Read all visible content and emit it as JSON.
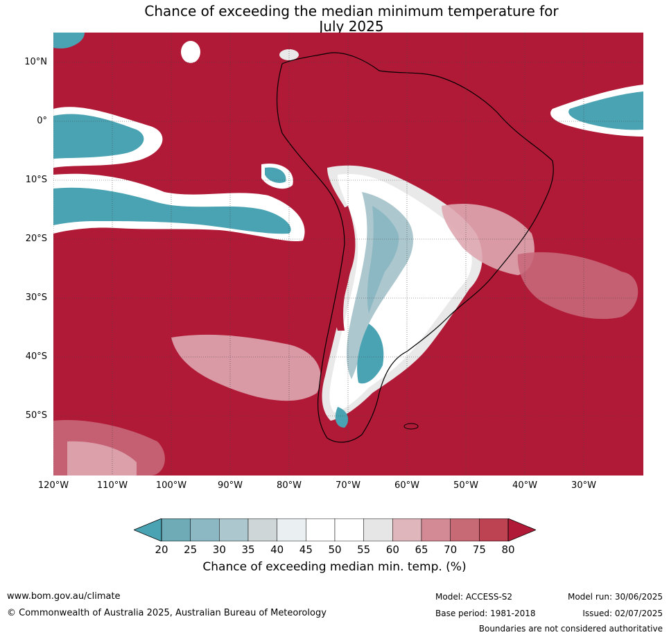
{
  "title": {
    "line1": "Chance of exceeding the median minimum temperature for",
    "line2": "July 2025"
  },
  "map": {
    "lat_labels": [
      "10°N",
      "0°",
      "10°S",
      "20°S",
      "30°S",
      "40°S",
      "50°S"
    ],
    "lon_labels": [
      "120°W",
      "110°W",
      "100°W",
      "90°W",
      "80°W",
      "70°W",
      "60°W",
      "50°W",
      "40°W",
      "30°W"
    ],
    "colors": {
      "ocean_high": "#b01a36",
      "low_teal": "#4aa3b2",
      "mid_white": "#ffffff",
      "light_grey": "#e9e9e9",
      "pink": "#dea7b1",
      "salmon": "#c8687a"
    }
  },
  "colorbar": {
    "ticks": [
      "20",
      "25",
      "30",
      "35",
      "40",
      "45",
      "50",
      "55",
      "60",
      "65",
      "70",
      "75",
      "80"
    ],
    "colors": [
      "#4aa3b2",
      "#6fabb7",
      "#8cb8c4",
      "#acc7ce",
      "#cfd6d8",
      "#eaf0f2",
      "#ffffff",
      "#ffffff",
      "#e6e6e6",
      "#e0b6bd",
      "#d38a95",
      "#c76a76",
      "#bd4353",
      "#b01a36"
    ],
    "label": "Chance of exceeding median min. temp. (%)"
  },
  "footer": {
    "website": "www.bom.gov.au/climate",
    "copyright": "© Commonwealth of Australia 2025, Australian Bureau of Meteorology",
    "model": "Model: ACCESS-S2",
    "base_period": "Base period: 1981-2018",
    "model_run": "Model run: 30/06/2025",
    "issued": "Issued: 02/07/2025",
    "disclaimer": "Boundaries are not considered authoritative"
  }
}
